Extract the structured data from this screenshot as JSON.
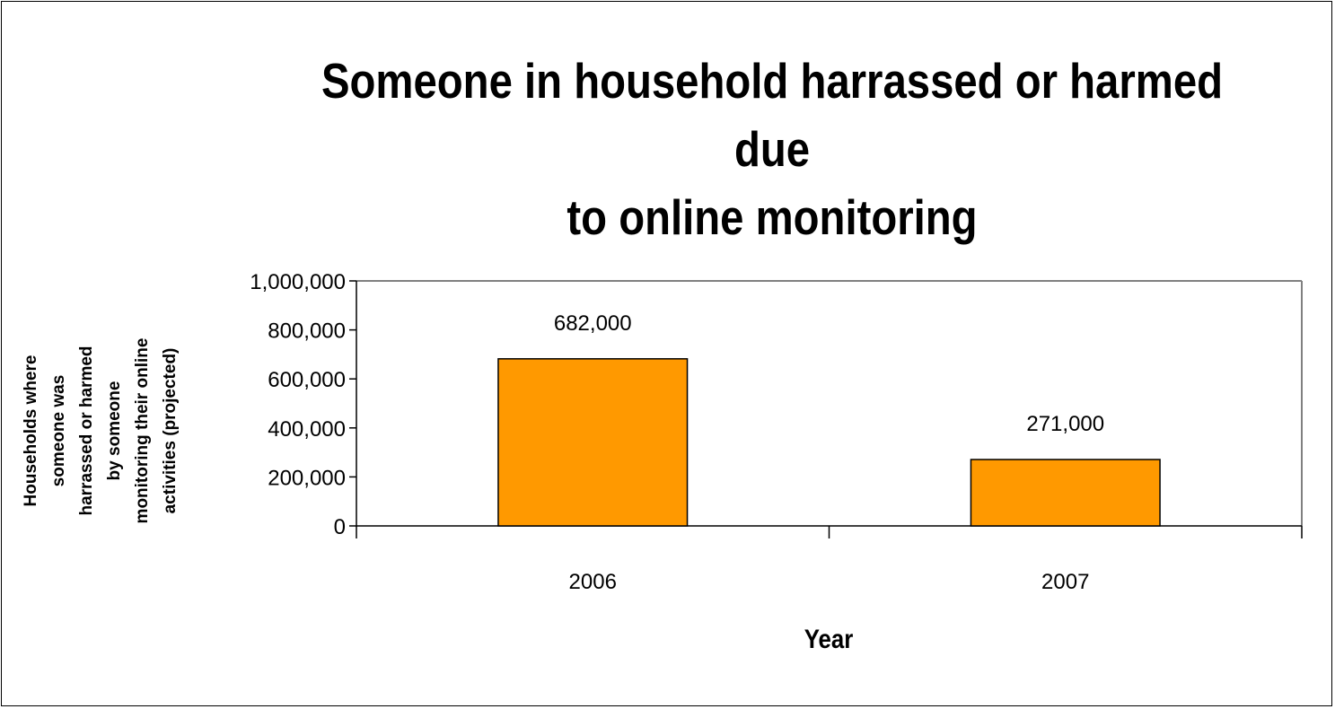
{
  "chart_data": {
    "type": "bar",
    "title": "Someone in household harrassed or harmed due to online monitoring",
    "title_lines": [
      "Someone in household harrassed or harmed due",
      "to online monitoring"
    ],
    "xlabel": "Year",
    "ylabel": "Households where someone was harrassed or harmed by someone monitoring their online activities (projected)",
    "ylabel_lines": [
      "Households where",
      "someone was",
      "harrassed or harmed",
      "by someone",
      "monitoring their online",
      "activities (projected)"
    ],
    "categories": [
      "2006",
      "2007"
    ],
    "values": [
      682000,
      271000
    ],
    "data_labels": [
      "682,000",
      "271,000"
    ],
    "ylim": [
      0,
      1000000
    ],
    "yticks": [
      0,
      200000,
      400000,
      600000,
      800000,
      1000000
    ],
    "ytick_labels": [
      "0",
      "200,000",
      "400,000",
      "600,000",
      "800,000",
      "1,000,000"
    ],
    "bar_color": "#FF9900",
    "grid": false,
    "legend": "none"
  }
}
